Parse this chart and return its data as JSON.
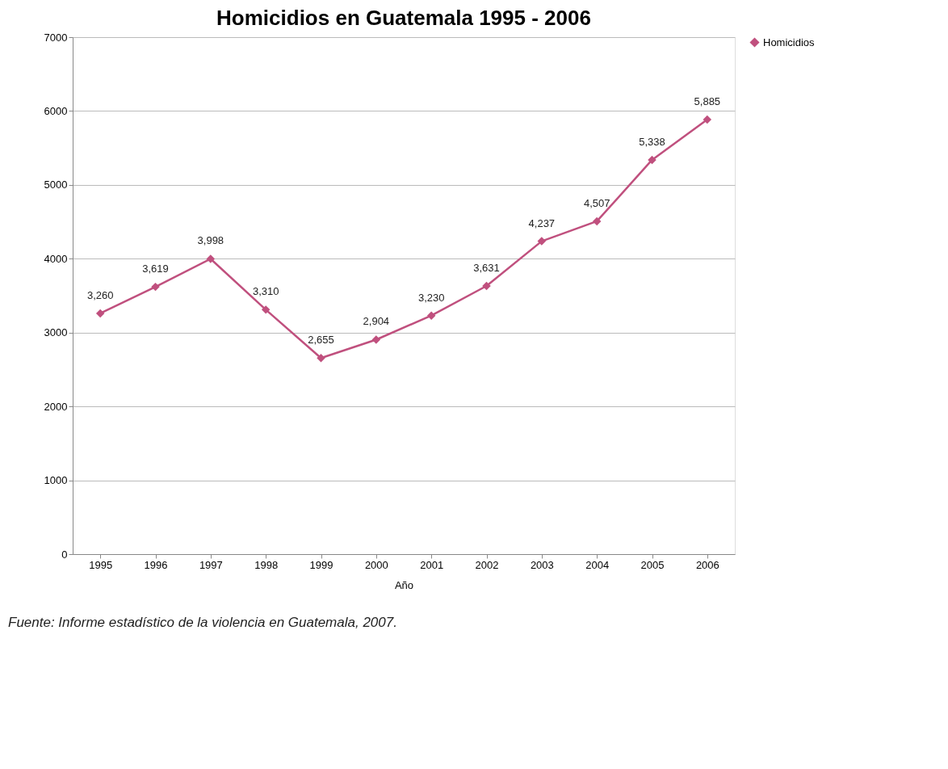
{
  "chart_data": {
    "type": "line",
    "title": "Homicidios en Guatemala 1995 - 2006",
    "xlabel": "Año",
    "categories": [
      "1995",
      "1996",
      "1997",
      "1998",
      "1999",
      "2000",
      "2001",
      "2002",
      "2003",
      "2004",
      "2005",
      "2006"
    ],
    "series": [
      {
        "name": "Homicidios",
        "color": "#c0507e",
        "values": [
          3260,
          3619,
          3998,
          3310,
          2655,
          2904,
          3230,
          3631,
          4237,
          4507,
          5338,
          5885
        ],
        "value_labels": [
          "3,260",
          "3,619",
          "3,998",
          "3,310",
          "2,655",
          "2,904",
          "3,230",
          "3,631",
          "4,237",
          "4,507",
          "5,338",
          "5,885"
        ]
      }
    ],
    "ylim": [
      0,
      7000
    ],
    "yticks": [
      0,
      1000,
      2000,
      3000,
      4000,
      5000,
      6000,
      7000
    ],
    "grid": "y",
    "legend": "right",
    "marker": "diamond",
    "line_style": "solid",
    "annotations": [
      "Fuente: Informe estadístico de la violencia en Guatemala, 2007."
    ]
  }
}
